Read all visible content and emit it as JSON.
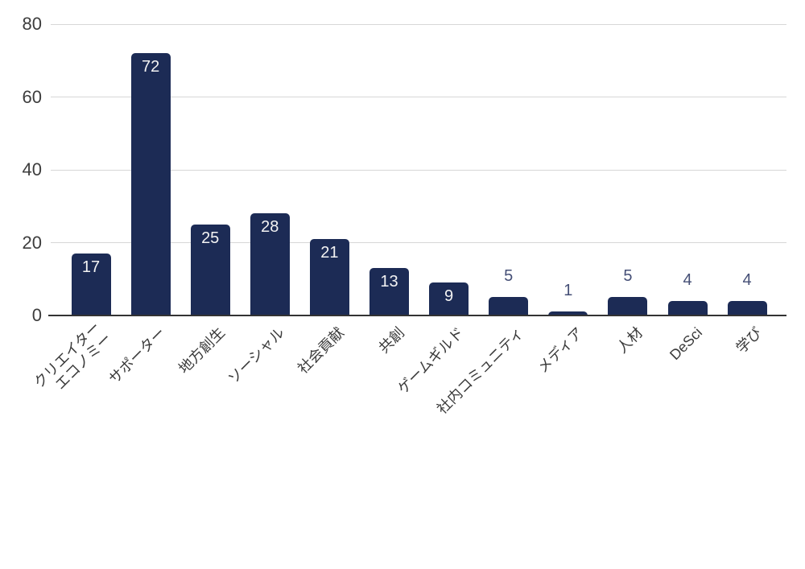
{
  "chart_data": {
    "type": "bar",
    "categories": [
      "クリエイター\nエコノミー",
      "サポーター",
      "地方創生",
      "ソーシャル",
      "社会貢献",
      "共創",
      "ゲームギルド",
      "社内コミュニティ",
      "メディア",
      "人材",
      "DeSci",
      "学び"
    ],
    "values": [
      17,
      72,
      25,
      28,
      21,
      13,
      9,
      5,
      1,
      5,
      4,
      4
    ],
    "title": "",
    "xlabel": "",
    "ylabel": "",
    "ylim": [
      0,
      80
    ],
    "y_ticks": [
      0,
      20,
      40,
      60,
      80
    ],
    "grid": true,
    "legend": "none",
    "colors": {
      "background": "#ffffff",
      "bar": "#1c2b55",
      "gridline": "#d7d7d7",
      "baseline": "#333333",
      "y_tick_label": "#3d3d3d",
      "x_axis_label": "#3a3a3a",
      "value_label_inside": "#f3f3f3",
      "value_label_outside": "#454f76"
    }
  }
}
